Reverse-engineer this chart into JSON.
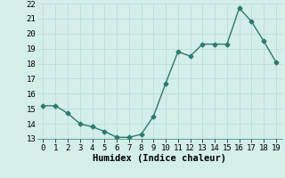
{
  "x": [
    0,
    1,
    2,
    3,
    4,
    5,
    6,
    7,
    8,
    9,
    10,
    11,
    12,
    13,
    14,
    15,
    16,
    17,
    18,
    19
  ],
  "y": [
    15.2,
    15.2,
    14.7,
    14.0,
    13.8,
    13.5,
    13.1,
    13.1,
    13.3,
    14.5,
    16.7,
    18.8,
    18.5,
    19.3,
    19.3,
    19.3,
    21.7,
    20.8,
    19.5,
    18.1
  ],
  "xlabel": "Humidex (Indice chaleur)",
  "ylim": [
    13,
    22
  ],
  "xlim": [
    -0.5,
    19.5
  ],
  "yticks": [
    13,
    14,
    15,
    16,
    17,
    18,
    19,
    20,
    21,
    22
  ],
  "xticks": [
    0,
    1,
    2,
    3,
    4,
    5,
    6,
    7,
    8,
    9,
    10,
    11,
    12,
    13,
    14,
    15,
    16,
    17,
    18,
    19
  ],
  "line_color": "#2d7a6e",
  "bg_color": "#d4eeea",
  "grid_color": "#c0ddd8",
  "marker": "D",
  "marker_size": 2.5,
  "line_width": 1.0,
  "tick_fontsize": 6.5,
  "xlabel_fontsize": 7.5
}
